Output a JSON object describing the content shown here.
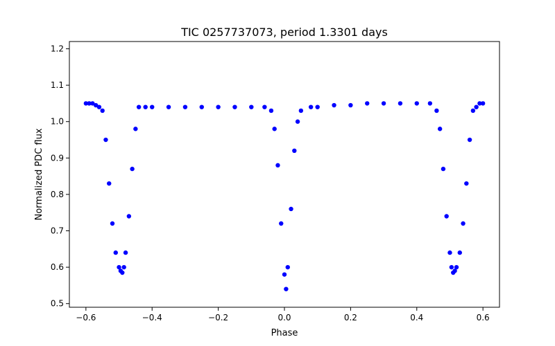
{
  "chart_data": {
    "type": "scatter",
    "title": "TIC 0257737073, period 1.3301 days",
    "xlabel": "Phase",
    "ylabel": "Normalized PDC flux",
    "xlim": [
      -0.65,
      0.65
    ],
    "ylim": [
      0.49,
      1.22
    ],
    "xticks": [
      -0.6,
      -0.4,
      -0.2,
      0.0,
      0.2,
      0.4,
      0.6
    ],
    "xtick_labels": [
      "−0.6",
      "−0.4",
      "−0.2",
      "0.0",
      "0.2",
      "0.4",
      "0.6"
    ],
    "yticks": [
      0.5,
      0.6,
      0.7,
      0.8,
      0.9,
      1.0,
      1.1,
      1.2
    ],
    "ytick_labels": [
      "0.5",
      "0.6",
      "0.7",
      "0.8",
      "0.9",
      "1.0",
      "1.1",
      "1.2"
    ],
    "grid": false,
    "marker_color": "#0000ff",
    "series": [
      {
        "x": [
          -0.6,
          -0.59,
          -0.58,
          -0.57,
          -0.56,
          -0.55,
          -0.54,
          -0.53,
          -0.52,
          -0.51,
          -0.5,
          -0.495,
          -0.49,
          -0.485,
          -0.48,
          -0.47,
          -0.46,
          -0.45,
          -0.44,
          -0.42,
          -0.4,
          -0.35,
          -0.3,
          -0.25,
          -0.2,
          -0.15,
          -0.1,
          -0.06,
          -0.04,
          -0.03,
          -0.02,
          -0.01,
          0.0,
          0.005,
          0.01,
          0.02,
          0.03,
          0.04,
          0.05,
          0.08,
          0.1,
          0.15,
          0.2,
          0.25,
          0.3,
          0.35,
          0.4,
          0.44,
          0.46,
          0.47,
          0.48,
          0.49,
          0.5,
          0.505,
          0.51,
          0.515,
          0.52,
          0.53,
          0.54,
          0.55,
          0.56,
          0.57,
          0.58,
          0.59,
          0.6
        ],
        "y": [
          1.05,
          1.05,
          1.05,
          1.045,
          1.04,
          1.03,
          0.95,
          0.83,
          0.72,
          0.64,
          0.6,
          0.59,
          0.585,
          0.6,
          0.64,
          0.74,
          0.87,
          0.98,
          1.04,
          1.04,
          1.04,
          1.04,
          1.04,
          1.04,
          1.04,
          1.04,
          1.04,
          1.04,
          1.03,
          0.98,
          0.88,
          0.72,
          0.58,
          0.54,
          0.6,
          0.76,
          0.92,
          1.0,
          1.03,
          1.04,
          1.04,
          1.045,
          1.045,
          1.05,
          1.05,
          1.05,
          1.05,
          1.05,
          1.03,
          0.98,
          0.87,
          0.74,
          0.64,
          0.6,
          0.585,
          0.59,
          0.6,
          0.64,
          0.72,
          0.83,
          0.95,
          1.03,
          1.04,
          1.05,
          1.05
        ]
      }
    ]
  }
}
